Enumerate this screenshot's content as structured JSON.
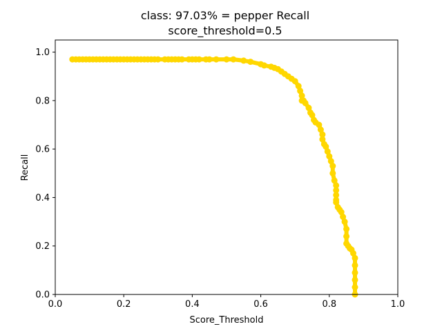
{
  "chart_data": {
    "type": "scatter",
    "title": "class: 97.03% = pepper Recall",
    "subtitle": "score_threshold=0.5",
    "xlabel": "Score_Threshold",
    "ylabel": "Recall",
    "xlim": [
      0.0,
      1.0
    ],
    "ylim": [
      0.0,
      1.05
    ],
    "xticks": [
      "0.0",
      "0.2",
      "0.4",
      "0.6",
      "0.8",
      "1.0"
    ],
    "yticks": [
      "0.0",
      "0.2",
      "0.4",
      "0.6",
      "0.8",
      "1.0"
    ],
    "grid": false,
    "legend": "none",
    "color": "#FFD700",
    "series": [
      {
        "x": [
          0.05,
          0.06,
          0.07,
          0.08,
          0.09,
          0.1,
          0.11,
          0.12,
          0.13,
          0.14,
          0.15,
          0.16,
          0.17,
          0.18,
          0.19,
          0.2,
          0.21,
          0.22,
          0.23,
          0.24,
          0.25,
          0.26,
          0.27,
          0.28,
          0.29,
          0.3,
          0.32,
          0.33,
          0.34,
          0.35,
          0.36,
          0.37,
          0.39,
          0.4,
          0.41,
          0.42,
          0.44,
          0.45,
          0.47,
          0.5,
          0.52,
          0.55,
          0.57,
          0.6,
          0.61,
          0.63,
          0.64,
          0.65,
          0.66,
          0.67,
          0.68,
          0.69,
          0.7,
          0.71,
          0.715,
          0.72,
          0.72,
          0.725,
          0.73,
          0.74,
          0.745,
          0.75,
          0.755,
          0.76,
          0.77,
          0.775,
          0.78,
          0.78,
          0.785,
          0.79,
          0.795,
          0.8,
          0.805,
          0.81,
          0.81,
          0.815,
          0.82,
          0.82,
          0.82,
          0.82,
          0.82,
          0.825,
          0.83,
          0.835,
          0.84,
          0.845,
          0.85,
          0.85,
          0.85,
          0.855,
          0.86,
          0.865,
          0.87,
          0.875,
          0.875,
          0.875,
          0.875,
          0.875,
          0.875
        ],
        "y": [
          0.97,
          0.97,
          0.97,
          0.97,
          0.97,
          0.97,
          0.97,
          0.97,
          0.97,
          0.97,
          0.97,
          0.97,
          0.97,
          0.97,
          0.97,
          0.97,
          0.97,
          0.97,
          0.97,
          0.97,
          0.97,
          0.97,
          0.97,
          0.97,
          0.97,
          0.97,
          0.97,
          0.97,
          0.97,
          0.97,
          0.97,
          0.97,
          0.97,
          0.97,
          0.97,
          0.97,
          0.97,
          0.97,
          0.97,
          0.97,
          0.97,
          0.965,
          0.96,
          0.95,
          0.945,
          0.94,
          0.935,
          0.93,
          0.92,
          0.91,
          0.9,
          0.89,
          0.88,
          0.86,
          0.84,
          0.82,
          0.8,
          0.8,
          0.79,
          0.77,
          0.75,
          0.74,
          0.72,
          0.71,
          0.7,
          0.68,
          0.66,
          0.64,
          0.62,
          0.61,
          0.59,
          0.57,
          0.55,
          0.53,
          0.5,
          0.47,
          0.45,
          0.43,
          0.41,
          0.39,
          0.38,
          0.36,
          0.35,
          0.34,
          0.32,
          0.3,
          0.27,
          0.24,
          0.21,
          0.2,
          0.19,
          0.185,
          0.17,
          0.15,
          0.12,
          0.09,
          0.06,
          0.03,
          0.0
        ]
      }
    ]
  }
}
